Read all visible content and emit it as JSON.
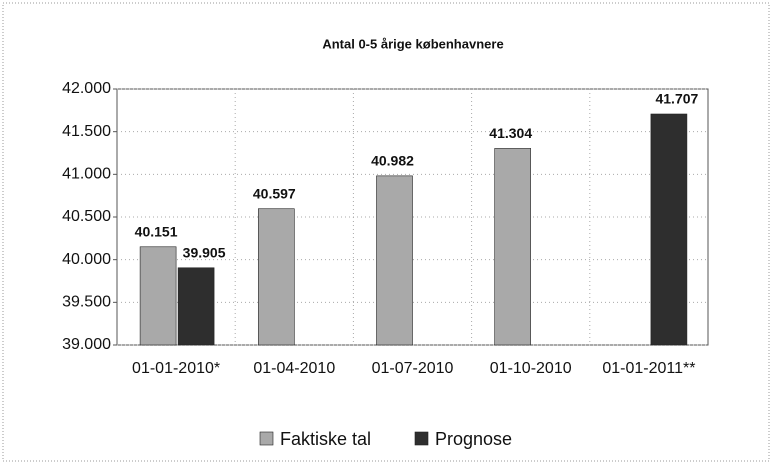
{
  "chart_data": {
    "type": "bar",
    "title": "Antal 0-5 årige københavnere",
    "categories": [
      "01-01-2010*",
      "01-04-2010",
      "01-07-2010",
      "01-10-2010",
      "01-01-2011**"
    ],
    "series": [
      {
        "name": "Faktiske tal",
        "color": "#a9a9a9",
        "values": [
          40151,
          40597,
          40982,
          41304,
          null
        ],
        "value_labels": [
          "40.151",
          "40.597",
          "40.982",
          "41.304",
          null
        ]
      },
      {
        "name": "Prognose",
        "color": "#2e2e2e",
        "values": [
          39905,
          null,
          null,
          null,
          41707
        ],
        "value_labels": [
          "39.905",
          null,
          null,
          null,
          "41.707"
        ]
      }
    ],
    "ylim": [
      39000,
      42000
    ],
    "yticks": [
      {
        "value": 39000,
        "label": "39.000"
      },
      {
        "value": 39500,
        "label": "39.500"
      },
      {
        "value": 40000,
        "label": "40.000"
      },
      {
        "value": 40500,
        "label": "40.500"
      },
      {
        "value": 41000,
        "label": "41.000"
      },
      {
        "value": 41500,
        "label": "41.500"
      },
      {
        "value": 42000,
        "label": "42.000"
      }
    ],
    "grid": true,
    "legend": "bottom"
  }
}
